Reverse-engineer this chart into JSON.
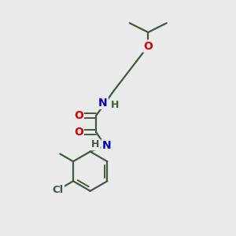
{
  "background_color": "#ebebeb",
  "bond_color": "#3d5c3d",
  "atom_colors": {
    "O": "#dd0000",
    "N": "#0000bb",
    "Cl": "#3d5c3d",
    "H": "#3d5c3d"
  },
  "figsize": [
    3.0,
    3.0
  ],
  "dpi": 100
}
